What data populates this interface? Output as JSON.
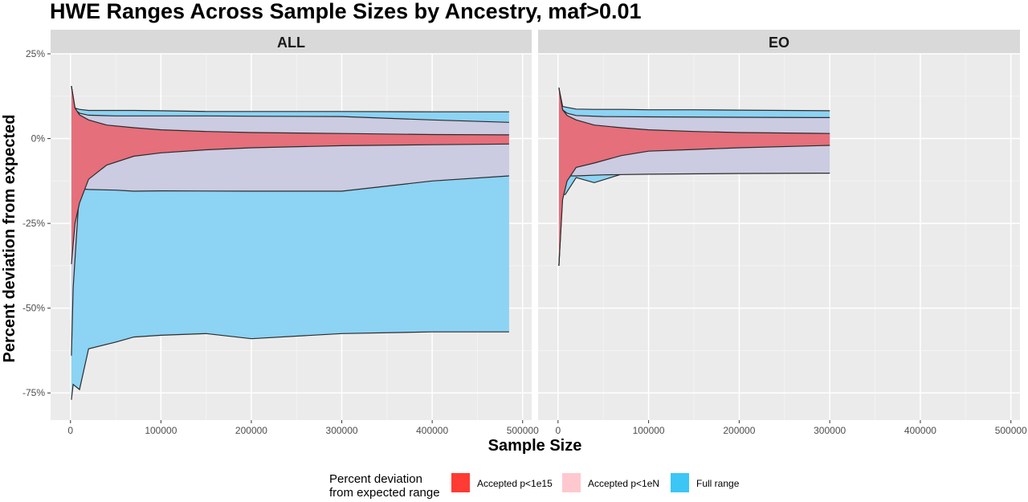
{
  "chart_data": {
    "type": "area",
    "title": "HWE Ranges Across Sample Sizes by Ancestry, maf>0.01",
    "xlabel": "Sample Size",
    "ylabel": "Percent deviation from expected",
    "xlim": [
      -22000,
      510000
    ],
    "ylim": [
      -83,
      25
    ],
    "x_ticks": [
      0,
      100000,
      200000,
      300000,
      400000,
      500000
    ],
    "x_tick_labels": [
      "0",
      "100000",
      "200000",
      "300000",
      "400000",
      "500000"
    ],
    "y_ticks": [
      25,
      0,
      -25,
      -50,
      -75
    ],
    "y_tick_labels": [
      "25%",
      "0%",
      "-25%",
      "-50%",
      "-75%"
    ],
    "grid": true,
    "legend": {
      "title_lines": [
        "Percent deviation",
        "from expected range"
      ],
      "placement": "bottom",
      "entries": [
        {
          "label": "Accepted p<1e15",
          "color": "#ff3b33"
        },
        {
          "label": "Accepted p<1eN",
          "color": "#ffc8cf"
        },
        {
          "label": "Full range",
          "color": "#3cc6f5"
        }
      ]
    },
    "colors": {
      "full_fill": "#8cd3f4",
      "pn_fill": "#cbcbe1",
      "p15_fill": "#e56f7b",
      "panel_bg": "#ebebeb",
      "strip_bg": "#d9d9d9"
    },
    "facets": [
      {
        "label": "ALL",
        "full_range": {
          "upper": [
            [
              1000,
              15.5
            ],
            [
              5000,
              9
            ],
            [
              10000,
              8.6
            ],
            [
              20000,
              8.3
            ],
            [
              50000,
              8.3
            ],
            [
              70000,
              8.3
            ],
            [
              100000,
              8.2
            ],
            [
              150000,
              8
            ],
            [
              200000,
              8
            ],
            [
              300000,
              8
            ],
            [
              400000,
              7.9
            ],
            [
              485000,
              7.9
            ]
          ],
          "lower": [
            [
              1000,
              -77
            ],
            [
              3000,
              -72.5
            ],
            [
              10000,
              -74
            ],
            [
              20000,
              -62
            ],
            [
              50000,
              -60
            ],
            [
              70000,
              -58.5
            ],
            [
              100000,
              -58
            ],
            [
              150000,
              -57.5
            ],
            [
              200000,
              -59
            ],
            [
              300000,
              -57.5
            ],
            [
              400000,
              -57
            ],
            [
              485000,
              -57
            ]
          ]
        },
        "accepted_p1eN": {
          "upper": [
            [
              1000,
              15.5
            ],
            [
              5000,
              8.5
            ],
            [
              10000,
              7.5
            ],
            [
              20000,
              6.9
            ],
            [
              50000,
              6.7
            ],
            [
              100000,
              6.7
            ],
            [
              150000,
              6.7
            ],
            [
              200000,
              6.6
            ],
            [
              300000,
              6.5
            ],
            [
              400000,
              5.5
            ],
            [
              485000,
              4.8
            ]
          ],
          "lower": [
            [
              1000,
              -64
            ],
            [
              3000,
              -44
            ],
            [
              10000,
              -14.8
            ],
            [
              20000,
              -15
            ],
            [
              50000,
              -15.2
            ],
            [
              70000,
              -15.5
            ],
            [
              100000,
              -15.4
            ],
            [
              200000,
              -15.5
            ],
            [
              300000,
              -15.5
            ],
            [
              400000,
              -12.5
            ],
            [
              485000,
              -11
            ]
          ]
        },
        "accepted_p1e15": {
          "upper": [
            [
              1000,
              15.5
            ],
            [
              5000,
              9
            ],
            [
              10000,
              7
            ],
            [
              20000,
              5.5
            ],
            [
              40000,
              4
            ],
            [
              70000,
              3.2
            ],
            [
              100000,
              2.6
            ],
            [
              150000,
              2.1
            ],
            [
              200000,
              1.8
            ],
            [
              300000,
              1.5
            ],
            [
              400000,
              1.2
            ],
            [
              485000,
              1.1
            ]
          ],
          "lower": [
            [
              1000,
              -37
            ],
            [
              5000,
              -25
            ],
            [
              10000,
              -19
            ],
            [
              20000,
              -12
            ],
            [
              40000,
              -7.8
            ],
            [
              70000,
              -5.2
            ],
            [
              100000,
              -4.2
            ],
            [
              150000,
              -3.3
            ],
            [
              200000,
              -2.7
            ],
            [
              300000,
              -2.1
            ],
            [
              400000,
              -1.8
            ],
            [
              485000,
              -1.6
            ]
          ]
        }
      },
      {
        "label": "EO",
        "full_range": {
          "upper": [
            [
              1000,
              15
            ],
            [
              5000,
              9.5
            ],
            [
              10000,
              9.2
            ],
            [
              20000,
              8.7
            ],
            [
              40000,
              8.6
            ],
            [
              70000,
              8.6
            ],
            [
              100000,
              8.5
            ],
            [
              150000,
              8.5
            ],
            [
              200000,
              8.4
            ],
            [
              300000,
              8.2
            ]
          ],
          "lower": [
            [
              1000,
              -37.5
            ],
            [
              5000,
              -16.5
            ],
            [
              8000,
              -16.5
            ],
            [
              20000,
              -11.5
            ],
            [
              40000,
              -13
            ],
            [
              70000,
              -10.5
            ],
            [
              100000,
              -10.3
            ],
            [
              200000,
              -10.2
            ],
            [
              300000,
              -10
            ]
          ]
        },
        "accepted_p1eN": {
          "upper": [
            [
              1000,
              15
            ],
            [
              5000,
              8.5
            ],
            [
              10000,
              7.5
            ],
            [
              20000,
              6.8
            ],
            [
              50000,
              6.5
            ],
            [
              100000,
              6.4
            ],
            [
              200000,
              6.3
            ],
            [
              300000,
              6.2
            ]
          ],
          "lower": [
            [
              1000,
              -37.5
            ],
            [
              5000,
              -12.5
            ],
            [
              10000,
              -11
            ],
            [
              20000,
              -11
            ],
            [
              50000,
              -10.7
            ],
            [
              100000,
              -10.5
            ],
            [
              200000,
              -10.3
            ],
            [
              300000,
              -10.2
            ]
          ]
        },
        "accepted_p1e15": {
          "upper": [
            [
              1000,
              15
            ],
            [
              5000,
              8.5
            ],
            [
              10000,
              6.8
            ],
            [
              20000,
              5.5
            ],
            [
              40000,
              4
            ],
            [
              70000,
              3.2
            ],
            [
              100000,
              2.6
            ],
            [
              150000,
              2.1
            ],
            [
              200000,
              1.8
            ],
            [
              300000,
              1.5
            ]
          ],
          "lower": [
            [
              1000,
              -37.5
            ],
            [
              5000,
              -18
            ],
            [
              10000,
              -12.5
            ],
            [
              20000,
              -8.5
            ],
            [
              40000,
              -7.2
            ],
            [
              70000,
              -5
            ],
            [
              100000,
              -3.7
            ],
            [
              150000,
              -3.2
            ],
            [
              200000,
              -2.7
            ],
            [
              300000,
              -2
            ]
          ]
        }
      }
    ]
  }
}
